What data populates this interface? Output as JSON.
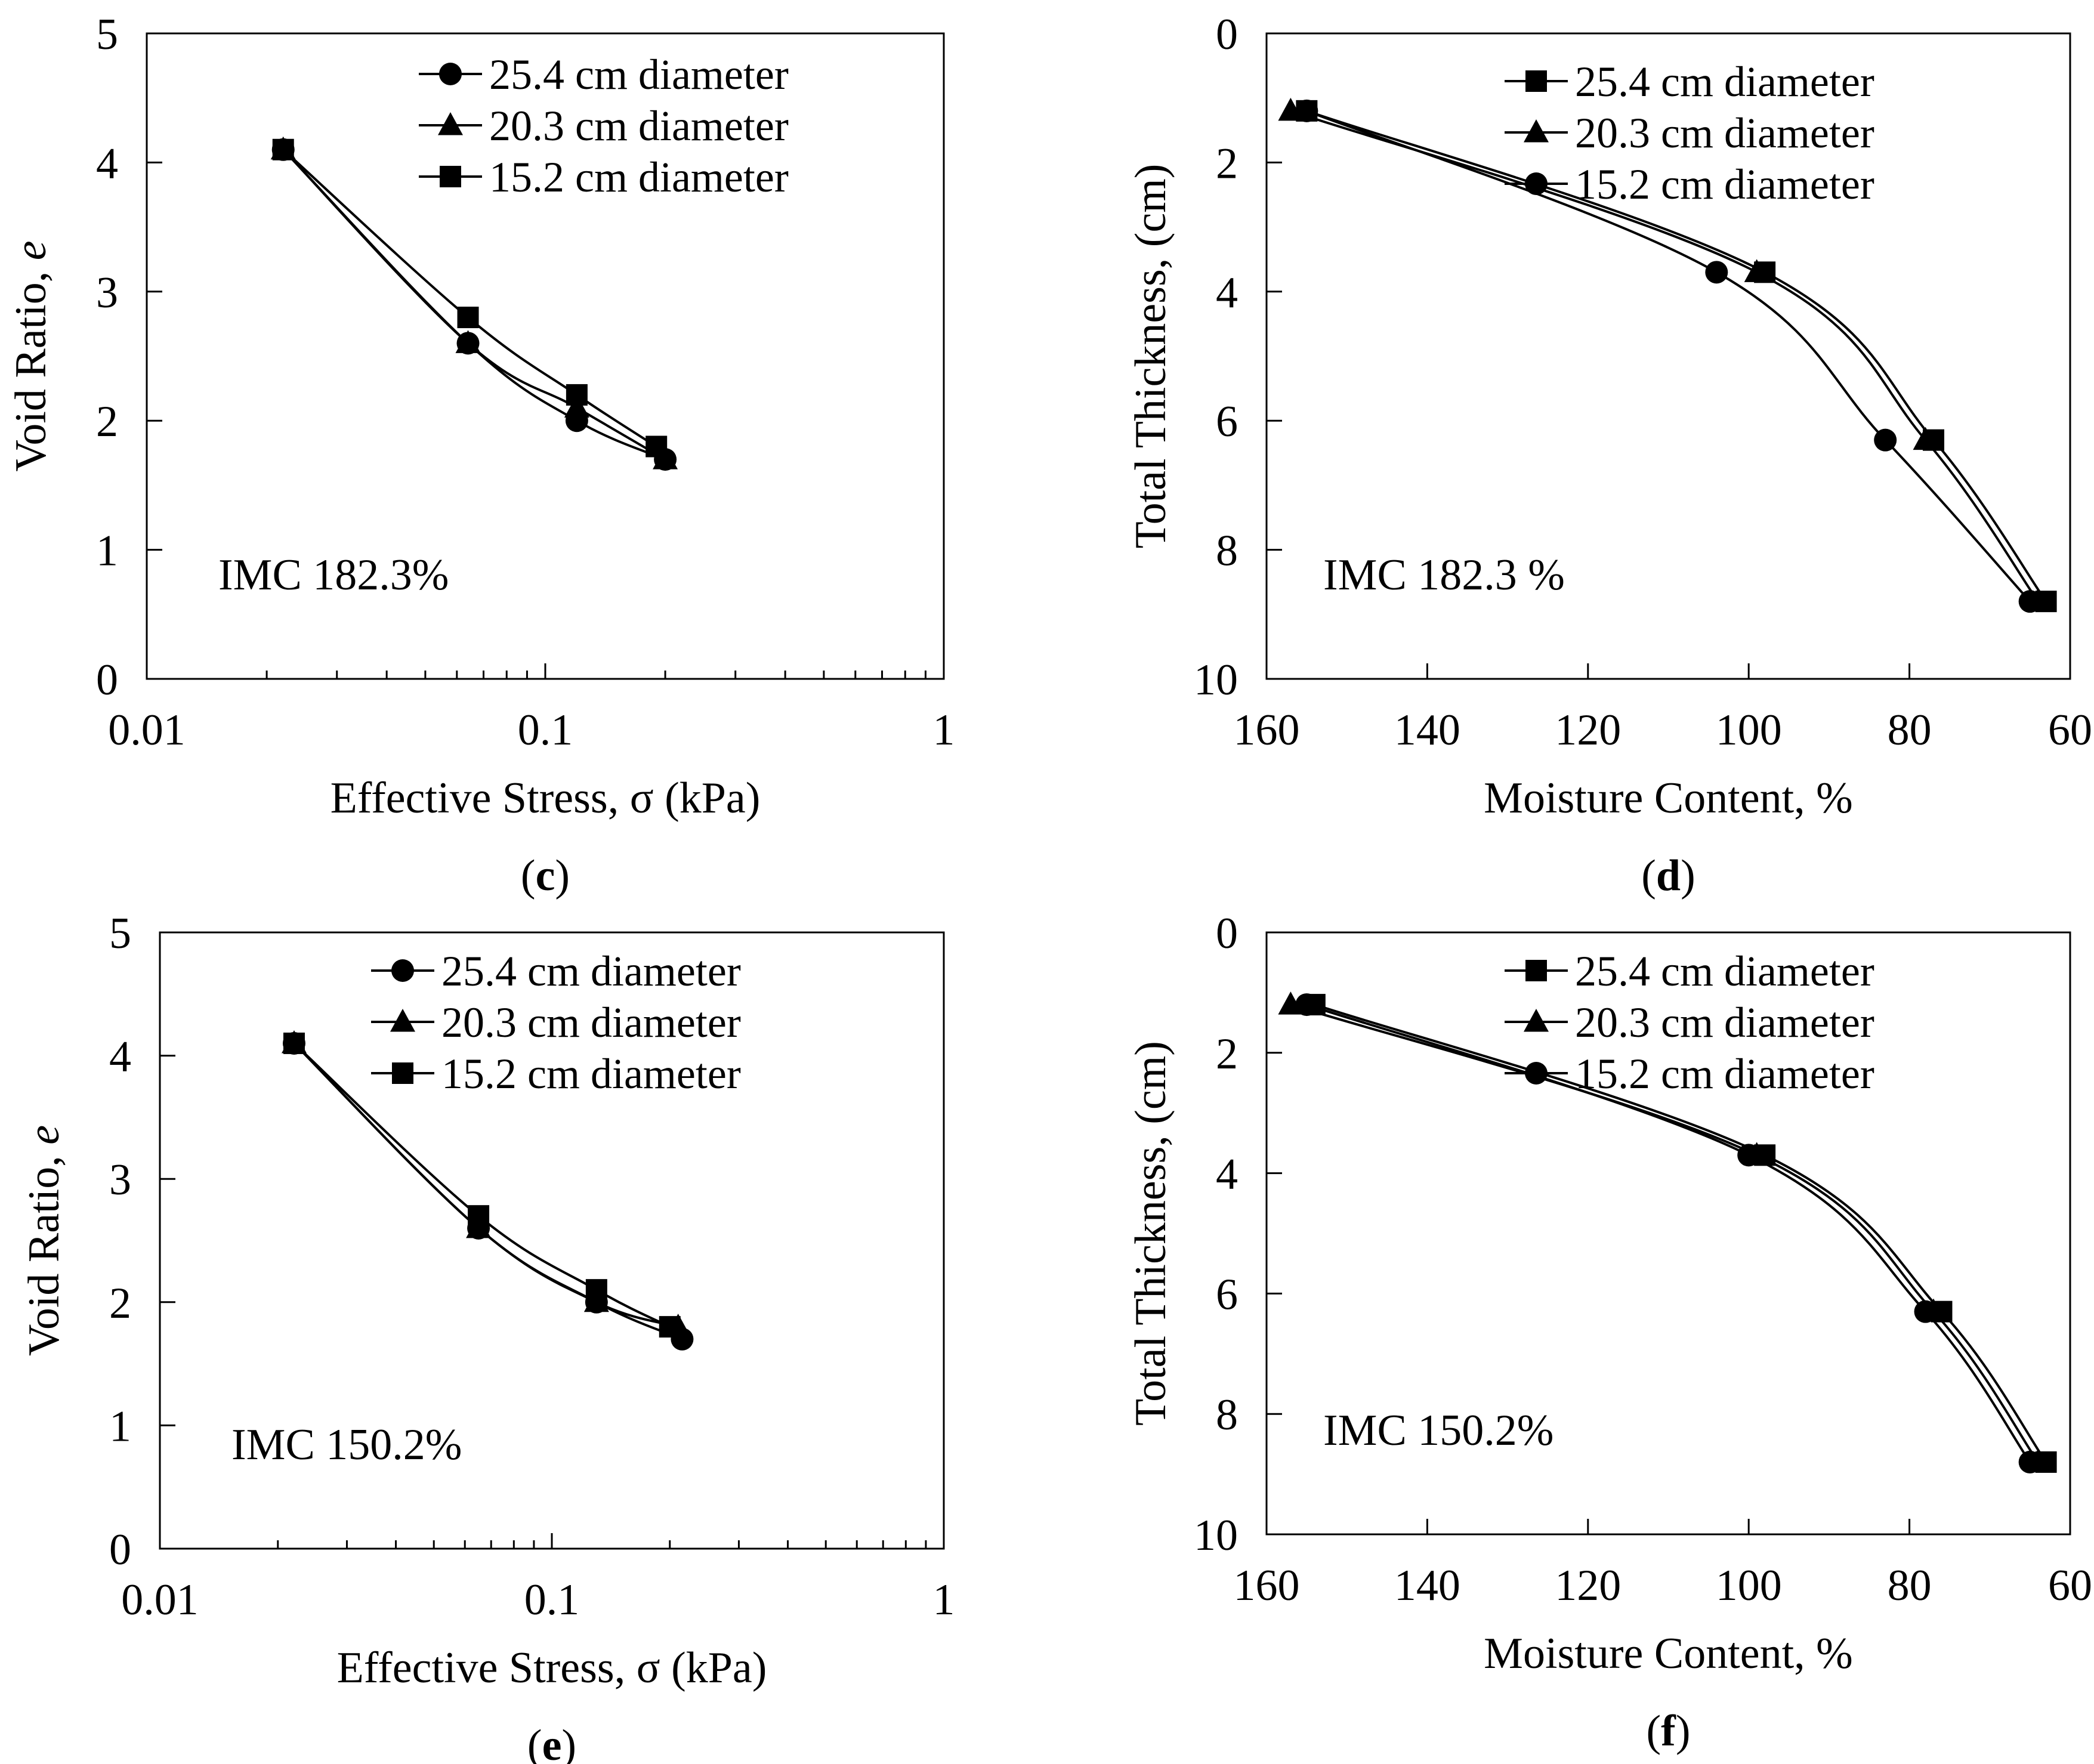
{
  "figure": {
    "marker_color": "#000000",
    "line_color": "#000000"
  },
  "chart_data": [
    {
      "id": "c",
      "type": "line",
      "panel_label": "c",
      "xscale": "log",
      "xlim": [
        0.01,
        1
      ],
      "ylim": [
        0,
        5
      ],
      "xticks": [
        "0.01",
        "0.1",
        "1"
      ],
      "yticks": [
        "0",
        "1",
        "2",
        "3",
        "4",
        "5"
      ],
      "xlabel": "Effective Stress, σ (kPa)",
      "ylabel_prefix": "Void Ratio, ",
      "ylabel_italic": "e",
      "annotation": "IMC 182.3%",
      "legend_position": "top-right",
      "series": [
        {
          "name": "25.4 cm diameter",
          "marker": "circle",
          "x": [
            0.022,
            0.064,
            0.12,
            0.2
          ],
          "y": [
            4.1,
            2.6,
            2.0,
            1.7
          ]
        },
        {
          "name": "20.3 cm diameter",
          "marker": "triangle",
          "x": [
            0.022,
            0.064,
            0.12,
            0.2
          ],
          "y": [
            4.1,
            2.6,
            2.1,
            1.7
          ]
        },
        {
          "name": "15.2 cm diameter",
          "marker": "square",
          "x": [
            0.022,
            0.064,
            0.12,
            0.19
          ],
          "y": [
            4.1,
            2.8,
            2.2,
            1.8
          ]
        }
      ]
    },
    {
      "id": "d",
      "type": "line",
      "panel_label": "d",
      "xscale": "linear",
      "xreversed": true,
      "yreversed": true,
      "xlim": [
        160,
        60
      ],
      "ylim": [
        0,
        10
      ],
      "xticks": [
        "160",
        "140",
        "120",
        "100",
        "80",
        "60"
      ],
      "yticks": [
        "0",
        "2",
        "4",
        "6",
        "8",
        "10"
      ],
      "xlabel": "Moisture Content, %",
      "ylabel_prefix": "Total Thickness, (cm)",
      "ylabel_italic": "",
      "annotation": "IMC 182.3 %",
      "legend_position": "top-right",
      "series": [
        {
          "name": "25.4 cm diameter",
          "marker": "square",
          "x": [
            155,
            98,
            77,
            63
          ],
          "y": [
            1.2,
            3.7,
            6.3,
            8.8
          ]
        },
        {
          "name": "20.3 cm diameter",
          "marker": "triangle",
          "x": [
            157,
            99,
            78,
            64
          ],
          "y": [
            1.2,
            3.7,
            6.3,
            8.8
          ]
        },
        {
          "name": "15.2 cm diameter",
          "marker": "circle",
          "x": [
            155,
            104,
            83,
            65
          ],
          "y": [
            1.2,
            3.7,
            6.3,
            8.8
          ]
        }
      ]
    },
    {
      "id": "e",
      "type": "line",
      "panel_label": "e",
      "xscale": "log",
      "xlim": [
        0.01,
        1
      ],
      "ylim": [
        0,
        5
      ],
      "xticks": [
        "0.01",
        "0.1",
        "1"
      ],
      "yticks": [
        "0",
        "1",
        "2",
        "3",
        "4",
        "5"
      ],
      "xlabel": "Effective Stress, σ (kPa)",
      "ylabel_prefix": "Void Ratio, ",
      "ylabel_italic": "e",
      "annotation": "IMC 150.2%",
      "legend_position": "top-right",
      "series": [
        {
          "name": "25.4 cm diameter",
          "marker": "circle",
          "x": [
            0.022,
            0.065,
            0.13,
            0.215
          ],
          "y": [
            4.1,
            2.6,
            2.0,
            1.7
          ]
        },
        {
          "name": "20.3 cm diameter",
          "marker": "triangle",
          "x": [
            0.022,
            0.065,
            0.13,
            0.21
          ],
          "y": [
            4.1,
            2.6,
            2.0,
            1.8
          ]
        },
        {
          "name": "15.2 cm diameter",
          "marker": "square",
          "x": [
            0.022,
            0.065,
            0.13,
            0.2
          ],
          "y": [
            4.1,
            2.7,
            2.1,
            1.8
          ]
        }
      ]
    },
    {
      "id": "f",
      "type": "line",
      "panel_label": "f",
      "xscale": "linear",
      "xreversed": true,
      "yreversed": true,
      "xlim": [
        160,
        60
      ],
      "ylim": [
        0,
        10
      ],
      "xticks": [
        "160",
        "140",
        "120",
        "100",
        "80",
        "60"
      ],
      "yticks": [
        "0",
        "2",
        "4",
        "6",
        "8",
        "10"
      ],
      "xlabel": "Moisture Content, %",
      "ylabel_prefix": "Total Thickness, (cm)",
      "ylabel_italic": "",
      "annotation": "IMC 150.2%",
      "legend_position": "top-right",
      "series": [
        {
          "name": "25.4 cm diameter",
          "marker": "square",
          "x": [
            154,
            98,
            76,
            63
          ],
          "y": [
            1.2,
            3.7,
            6.3,
            8.8
          ]
        },
        {
          "name": "20.3 cm diameter",
          "marker": "triangle",
          "x": [
            157,
            99,
            77,
            64
          ],
          "y": [
            1.2,
            3.7,
            6.3,
            8.8
          ]
        },
        {
          "name": "15.2 cm diameter",
          "marker": "circle",
          "x": [
            155,
            100,
            78,
            65
          ],
          "y": [
            1.2,
            3.7,
            6.3,
            8.8
          ]
        }
      ]
    }
  ]
}
